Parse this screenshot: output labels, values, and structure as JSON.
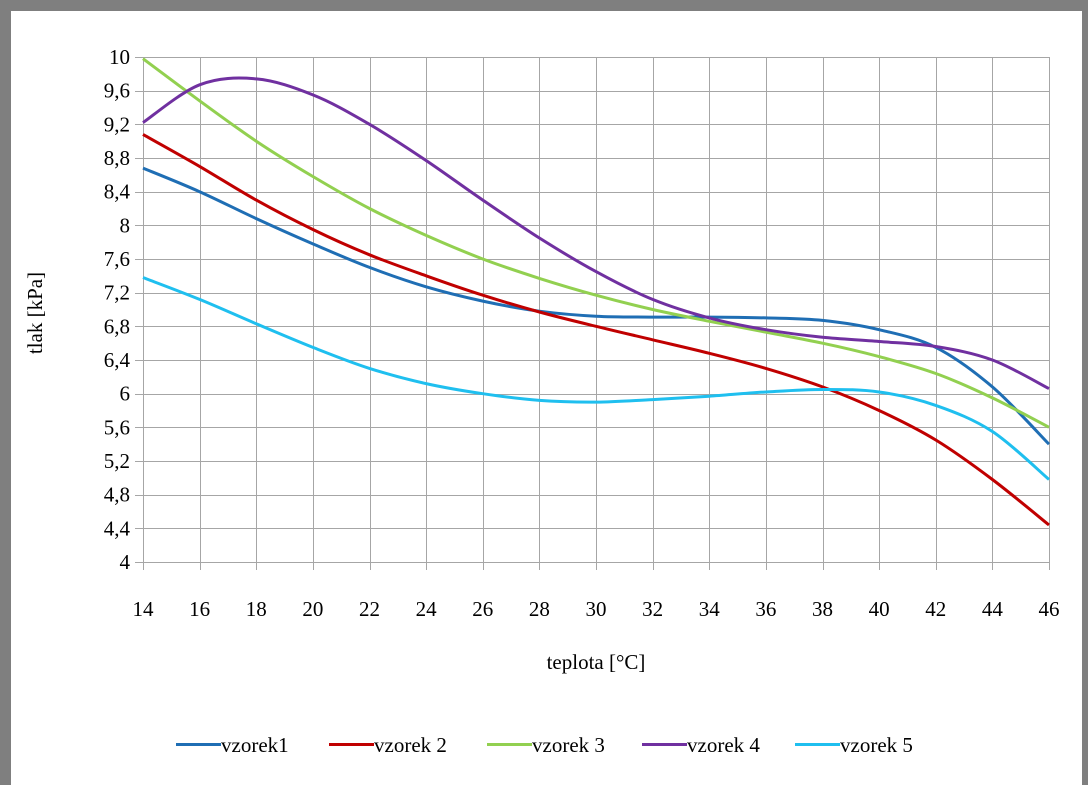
{
  "chart_data": {
    "type": "line",
    "title": "",
    "xlabel": "teplota [°C]",
    "ylabel": "tlak [kPa]",
    "xlim": [
      14,
      46
    ],
    "ylim": [
      4,
      10
    ],
    "x_ticks": [
      "14",
      "16",
      "18",
      "20",
      "22",
      "24",
      "26",
      "28",
      "30",
      "32",
      "34",
      "36",
      "38",
      "40",
      "42",
      "44",
      "46"
    ],
    "y_ticks": [
      "4",
      "4,4",
      "4,8",
      "5,2",
      "5,6",
      "6",
      "6,4",
      "6,8",
      "7,2",
      "7,6",
      "8",
      "8,4",
      "8,8",
      "9,2",
      "9,6",
      "10"
    ],
    "grid": true,
    "legend_position": "bottom",
    "x": [
      14,
      16,
      18,
      20,
      22,
      24,
      26,
      28,
      30,
      32,
      34,
      36,
      38,
      40,
      42,
      44,
      46
    ],
    "series": [
      {
        "name": "vzorek1",
        "color": "#1f6eb4",
        "values": [
          8.68,
          8.4,
          8.08,
          7.78,
          7.5,
          7.27,
          7.1,
          6.98,
          6.92,
          6.91,
          6.91,
          6.9,
          6.87,
          6.76,
          6.55,
          6.08,
          5.4
        ]
      },
      {
        "name": "vzorek 2",
        "color": "#c00000",
        "values": [
          9.08,
          8.7,
          8.3,
          7.95,
          7.65,
          7.4,
          7.17,
          6.97,
          6.8,
          6.64,
          6.48,
          6.3,
          6.08,
          5.8,
          5.45,
          4.98,
          4.44
        ]
      },
      {
        "name": "vzorek 3",
        "color": "#92d050",
        "values": [
          9.98,
          9.48,
          9.0,
          8.58,
          8.2,
          7.88,
          7.6,
          7.37,
          7.17,
          7.0,
          6.86,
          6.73,
          6.6,
          6.44,
          6.24,
          5.95,
          5.6
        ]
      },
      {
        "name": "vzorek 4",
        "color": "#7030a0",
        "values": [
          9.22,
          9.67,
          9.74,
          9.55,
          9.2,
          8.77,
          8.3,
          7.85,
          7.45,
          7.12,
          6.9,
          6.76,
          6.67,
          6.62,
          6.56,
          6.4,
          6.06
        ]
      },
      {
        "name": "vzorek 5",
        "color": "#1fbfef",
        "values": [
          7.38,
          7.12,
          6.83,
          6.55,
          6.3,
          6.12,
          6.0,
          5.92,
          5.9,
          5.93,
          5.97,
          6.02,
          6.05,
          6.02,
          5.86,
          5.55,
          4.98
        ]
      }
    ]
  }
}
